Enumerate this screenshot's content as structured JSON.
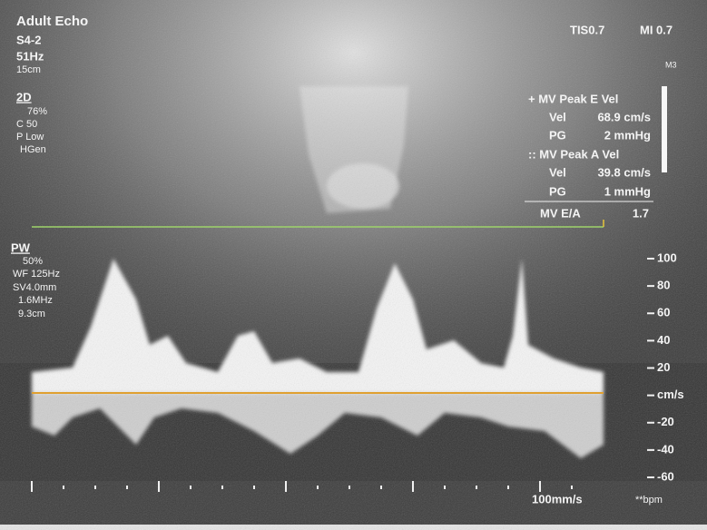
{
  "header": {
    "title": "Adult Echo",
    "probe": "S4-2",
    "frame_rate": "51Hz",
    "depth": "15cm",
    "tis": "TIS0.7",
    "mi": "MI 0.7",
    "map": "M3"
  },
  "mode_2d": {
    "label": "2D",
    "lines": [
      "76%",
      "C 50",
      "P Low",
      "HGen"
    ]
  },
  "mode_pw": {
    "label": "PW",
    "lines": [
      "50%",
      "WF 125Hz",
      "SV4.0mm",
      "1.6MHz",
      "9.3cm"
    ]
  },
  "measurements": {
    "e_title": "+ MV Peak E Vel",
    "e_vel_label": "Vel",
    "e_vel": "68.9 cm/s",
    "e_pg_label": "PG",
    "e_pg": "2 mmHg",
    "a_title": ":: MV Peak A Vel",
    "a_vel_label": "Vel",
    "a_vel": "39.8 cm/s",
    "a_pg_label": "PG",
    "a_pg": "1 mmHg",
    "ratio_label": "MV E/A",
    "ratio": "1.7"
  },
  "velocity_scale": [
    "100",
    "80",
    "60",
    "40",
    "20",
    "cm/s",
    "-20",
    "-40",
    "-60"
  ],
  "footer": {
    "sweep": "100mm/s",
    "heart_rate": "**bpm"
  }
}
